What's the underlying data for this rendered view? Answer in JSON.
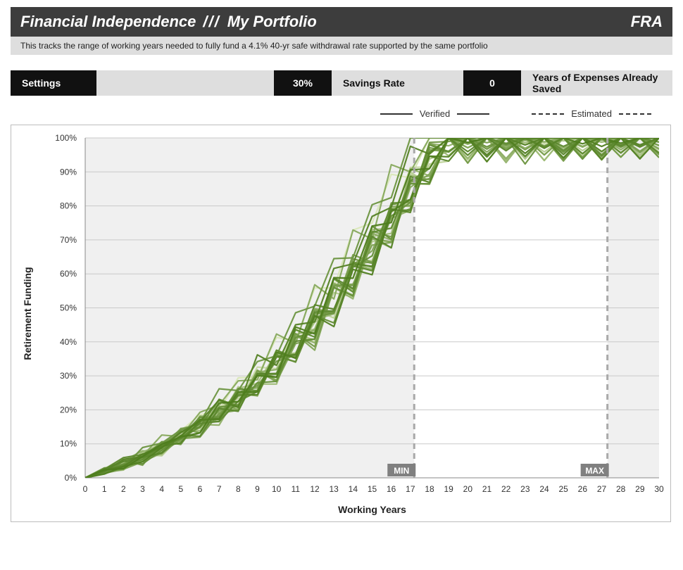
{
  "header": {
    "title_main": "Financial Independence",
    "title_sep": "///",
    "title_sub": "My Portfolio",
    "badge": "FRA",
    "subtitle": "This tracks the range of working years needed to fully fund a 4.1% 40-yr safe withdrawal rate supported by the same portfolio"
  },
  "settings": {
    "settings_label": "Settings",
    "savings_rate_value": "30%",
    "savings_rate_label": "Savings Rate",
    "years_saved_value": "0",
    "years_saved_label": "Years of Expenses Already Saved"
  },
  "legend": {
    "verified": "Verified",
    "estimated": "Estimated"
  },
  "chart": {
    "type": "line",
    "x_label": "Working Years",
    "y_label": "Retirement Funding",
    "xlim": [
      0,
      30
    ],
    "ylim": [
      0,
      100
    ],
    "xtick_step": 1,
    "ytick_step": 10,
    "x_tick_labels": [
      "0",
      "1",
      "2",
      "3",
      "4",
      "5",
      "6",
      "7",
      "8",
      "9",
      "10",
      "11",
      "12",
      "13",
      "14",
      "15",
      "16",
      "17",
      "18",
      "19",
      "20",
      "21",
      "22",
      "23",
      "24",
      "25",
      "26",
      "27",
      "28",
      "29",
      "30"
    ],
    "y_tick_labels": [
      "0%",
      "10%",
      "20%",
      "30%",
      "40%",
      "50%",
      "60%",
      "70%",
      "80%",
      "90%",
      "100%"
    ],
    "plot_background": "#f0f0f0",
    "plot_background_verified": "#ffffff",
    "gridline_color": "#c9c9c9",
    "axis_color": "#888888",
    "tick_label_color": "#333333",
    "tick_fontsize": 12,
    "axis_label_fontsize": 14,
    "minmax_box_bg": "#808080",
    "minmax_box_text": "#ffffff",
    "min_label": "MIN",
    "max_label": "MAX",
    "min_x": 17.2,
    "max_x": 27.3,
    "vline_color": "#a9a9a9",
    "vline_dash": "8,6",
    "vline_width": 3,
    "line_width": 2.2,
    "n_series": 30,
    "series_color_light": "#d9e7b8",
    "series_color_dark": "#4e7d1e",
    "series_jitter_pct": 5.5,
    "series_base_curve": [
      [
        0,
        0
      ],
      [
        1,
        2
      ],
      [
        2,
        4
      ],
      [
        3,
        6
      ],
      [
        4,
        9
      ],
      [
        5,
        12
      ],
      [
        6,
        15
      ],
      [
        7,
        19
      ],
      [
        8,
        23
      ],
      [
        9,
        28
      ],
      [
        10,
        33
      ],
      [
        11,
        39
      ],
      [
        12,
        45
      ],
      [
        13,
        52
      ],
      [
        14,
        59
      ],
      [
        15,
        67
      ],
      [
        16,
        75
      ],
      [
        17,
        84
      ],
      [
        18,
        92
      ],
      [
        19,
        100
      ],
      [
        20,
        100
      ],
      [
        21,
        100
      ],
      [
        22,
        100
      ],
      [
        23,
        100
      ],
      [
        24,
        100
      ],
      [
        25,
        100
      ],
      [
        26,
        100
      ],
      [
        27,
        100
      ],
      [
        28,
        100
      ],
      [
        29,
        100
      ],
      [
        30,
        100
      ]
    ]
  }
}
